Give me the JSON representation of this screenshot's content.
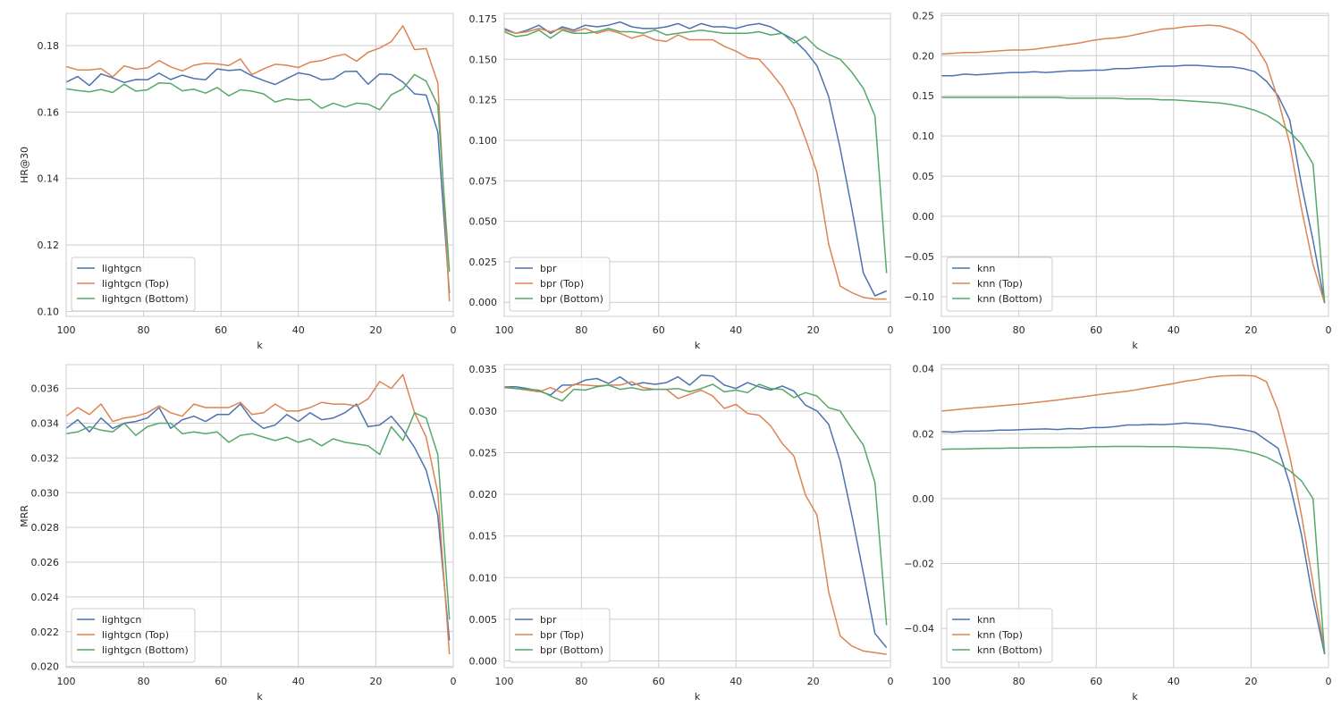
{
  "figure": {
    "colors": {
      "base": "#4c72b0",
      "top": "#dd8452",
      "bottom": "#55a868",
      "grid": "#cccccc",
      "frame": "#cccccc"
    }
  },
  "chart_data": [
    {
      "type": "line",
      "xlabel": "k",
      "ylabel": "HR@30",
      "xlim": [
        100,
        0
      ],
      "ylim": [
        0.0985,
        0.1897
      ],
      "xticks": [
        100,
        80,
        60,
        40,
        20,
        0
      ],
      "yticks": [
        0.1,
        0.12,
        0.14,
        0.16,
        0.18
      ],
      "ytick_labels": [
        "0.10",
        "0.12",
        "0.14",
        "0.16",
        "0.18"
      ],
      "legend": "lower-left",
      "x": [
        100,
        97,
        94,
        91,
        88,
        85,
        82,
        79,
        76,
        73,
        70,
        67,
        64,
        61,
        58,
        55,
        52,
        49,
        46,
        43,
        40,
        37,
        34,
        31,
        28,
        25,
        22,
        19,
        16,
        13,
        10,
        7,
        4,
        1
      ],
      "series": [
        {
          "name": "lightgcn",
          "values": [
            0.169,
            0.1707,
            0.168,
            0.1715,
            0.1703,
            0.1689,
            0.1698,
            0.1697,
            0.1717,
            0.1698,
            0.1711,
            0.1701,
            0.1697,
            0.173,
            0.1725,
            0.1728,
            0.1709,
            0.1695,
            0.1683,
            0.1701,
            0.1718,
            0.1712,
            0.1697,
            0.17,
            0.1722,
            0.1723,
            0.1684,
            0.1715,
            0.1713,
            0.169,
            0.1655,
            0.1651,
            0.154,
            0.1055
          ]
        },
        {
          "name": "lightgcn (Top)",
          "values": [
            0.1737,
            0.1727,
            0.1727,
            0.1731,
            0.1706,
            0.1739,
            0.1729,
            0.1733,
            0.1755,
            0.1736,
            0.1724,
            0.1741,
            0.1747,
            0.1745,
            0.174,
            0.176,
            0.1713,
            0.173,
            0.1744,
            0.1741,
            0.1734,
            0.175,
            0.1755,
            0.1767,
            0.1774,
            0.1753,
            0.178,
            0.1793,
            0.1812,
            0.186,
            0.1788,
            0.1791,
            0.1688,
            0.103
          ]
        },
        {
          "name": "lightgcn (Bottom)",
          "values": [
            0.167,
            0.1665,
            0.1661,
            0.1668,
            0.1659,
            0.1684,
            0.1663,
            0.1667,
            0.1688,
            0.1686,
            0.1664,
            0.1669,
            0.1657,
            0.1674,
            0.1649,
            0.1667,
            0.1663,
            0.1655,
            0.163,
            0.164,
            0.1636,
            0.1638,
            0.1611,
            0.1627,
            0.1615,
            0.1627,
            0.1624,
            0.1607,
            0.1652,
            0.167,
            0.1713,
            0.1693,
            0.162,
            0.112
          ]
        }
      ]
    },
    {
      "type": "line",
      "xlabel": "k",
      "ylabel": "",
      "xlim": [
        100,
        0
      ],
      "ylim": [
        -0.0087,
        0.1783
      ],
      "xticks": [
        100,
        80,
        60,
        40,
        20,
        0
      ],
      "yticks": [
        0.0,
        0.025,
        0.05,
        0.075,
        0.1,
        0.125,
        0.15,
        0.175
      ],
      "ytick_labels": [
        "0.000",
        "0.025",
        "0.050",
        "0.075",
        "0.100",
        "0.125",
        "0.150",
        "0.175"
      ],
      "legend": "lower-left",
      "x": [
        100,
        97,
        94,
        91,
        88,
        85,
        82,
        79,
        76,
        73,
        70,
        67,
        64,
        61,
        58,
        55,
        52,
        49,
        46,
        43,
        40,
        37,
        34,
        31,
        28,
        25,
        22,
        19,
        16,
        13,
        10,
        7,
        4,
        1
      ],
      "series": [
        {
          "name": "bpr",
          "values": [
            0.169,
            0.166,
            0.168,
            0.171,
            0.166,
            0.17,
            0.168,
            0.171,
            0.17,
            0.171,
            0.173,
            0.17,
            0.169,
            0.169,
            0.17,
            0.172,
            0.169,
            0.172,
            0.17,
            0.17,
            0.169,
            0.171,
            0.172,
            0.17,
            0.166,
            0.162,
            0.155,
            0.146,
            0.127,
            0.095,
            0.058,
            0.018,
            0.004,
            0.007
          ]
        },
        {
          "name": "bpr (Top)",
          "values": [
            0.168,
            0.166,
            0.167,
            0.169,
            0.167,
            0.169,
            0.167,
            0.169,
            0.166,
            0.168,
            0.166,
            0.163,
            0.165,
            0.162,
            0.161,
            0.165,
            0.162,
            0.162,
            0.162,
            0.158,
            0.155,
            0.151,
            0.15,
            0.142,
            0.133,
            0.12,
            0.101,
            0.08,
            0.036,
            0.01,
            0.006,
            0.003,
            0.002,
            0.002
          ]
        },
        {
          "name": "bpr (Bottom)",
          "values": [
            0.167,
            0.164,
            0.165,
            0.168,
            0.163,
            0.168,
            0.166,
            0.166,
            0.167,
            0.169,
            0.167,
            0.167,
            0.166,
            0.168,
            0.165,
            0.166,
            0.167,
            0.168,
            0.167,
            0.166,
            0.166,
            0.166,
            0.167,
            0.165,
            0.166,
            0.16,
            0.164,
            0.157,
            0.153,
            0.15,
            0.142,
            0.132,
            0.115,
            0.018
          ]
        }
      ]
    },
    {
      "type": "line",
      "xlabel": "k",
      "ylabel": "",
      "xlim": [
        100,
        0
      ],
      "ylim": [
        -0.1246,
        0.2526
      ],
      "xticks": [
        100,
        80,
        60,
        40,
        20,
        0
      ],
      "yticks": [
        -0.1,
        -0.05,
        0.0,
        0.05,
        0.1,
        0.15,
        0.2,
        0.25
      ],
      "ytick_labels": [
        "−0.10",
        "−0.05",
        "0.00",
        "0.05",
        "0.10",
        "0.15",
        "0.20",
        "0.25"
      ],
      "legend": "lower-left",
      "x": [
        100,
        97,
        94,
        91,
        88,
        85,
        82,
        79,
        76,
        73,
        70,
        67,
        64,
        61,
        58,
        55,
        52,
        49,
        46,
        43,
        40,
        37,
        34,
        31,
        28,
        25,
        22,
        19,
        16,
        13,
        10,
        7,
        4,
        1
      ],
      "series": [
        {
          "name": "knn",
          "values": [
            0.175,
            0.175,
            0.177,
            0.176,
            0.177,
            0.178,
            0.179,
            0.179,
            0.18,
            0.179,
            0.18,
            0.181,
            0.181,
            0.182,
            0.182,
            0.184,
            0.184,
            0.185,
            0.186,
            0.187,
            0.187,
            0.188,
            0.188,
            0.187,
            0.186,
            0.186,
            0.184,
            0.18,
            0.168,
            0.15,
            0.12,
            0.04,
            -0.03,
            -0.108
          ]
        },
        {
          "name": "knn (Top)",
          "values": [
            0.202,
            0.203,
            0.204,
            0.204,
            0.205,
            0.206,
            0.207,
            0.207,
            0.208,
            0.21,
            0.212,
            0.214,
            0.216,
            0.219,
            0.221,
            0.222,
            0.224,
            0.227,
            0.23,
            0.233,
            0.234,
            0.236,
            0.237,
            0.238,
            0.237,
            0.233,
            0.227,
            0.214,
            0.19,
            0.145,
            0.09,
            0.01,
            -0.06,
            -0.108
          ]
        },
        {
          "name": "knn (Bottom)",
          "values": [
            0.148,
            0.148,
            0.148,
            0.148,
            0.148,
            0.148,
            0.148,
            0.148,
            0.148,
            0.148,
            0.148,
            0.147,
            0.147,
            0.147,
            0.147,
            0.147,
            0.146,
            0.146,
            0.146,
            0.145,
            0.145,
            0.144,
            0.143,
            0.142,
            0.141,
            0.139,
            0.136,
            0.132,
            0.126,
            0.117,
            0.105,
            0.09,
            0.065,
            -0.108
          ]
        }
      ]
    },
    {
      "type": "line",
      "xlabel": "k",
      "ylabel": "MRR",
      "xlim": [
        100,
        0
      ],
      "ylim": [
        0.01993,
        0.03737
      ],
      "xticks": [
        100,
        80,
        60,
        40,
        20,
        0
      ],
      "yticks": [
        0.02,
        0.022,
        0.024,
        0.026,
        0.028,
        0.03,
        0.032,
        0.034,
        0.036
      ],
      "ytick_labels": [
        "0.020",
        "0.022",
        "0.024",
        "0.026",
        "0.028",
        "0.030",
        "0.032",
        "0.034",
        "0.036"
      ],
      "legend": "lower-left",
      "x": [
        100,
        97,
        94,
        91,
        88,
        85,
        82,
        79,
        76,
        73,
        70,
        67,
        64,
        61,
        58,
        55,
        52,
        49,
        46,
        43,
        40,
        37,
        34,
        31,
        28,
        25,
        22,
        19,
        16,
        13,
        10,
        7,
        4,
        1
      ],
      "series": [
        {
          "name": "lightgcn",
          "values": [
            0.0337,
            0.0342,
            0.0335,
            0.0343,
            0.0337,
            0.034,
            0.0341,
            0.0343,
            0.0349,
            0.0337,
            0.0342,
            0.0344,
            0.0341,
            0.0345,
            0.0345,
            0.0351,
            0.0342,
            0.0337,
            0.0339,
            0.0345,
            0.0341,
            0.0346,
            0.0342,
            0.0343,
            0.0346,
            0.0351,
            0.0338,
            0.0339,
            0.0344,
            0.0336,
            0.0326,
            0.0313,
            0.0287,
            0.0215
          ]
        },
        {
          "name": "lightgcn (Top)",
          "values": [
            0.0344,
            0.0349,
            0.0345,
            0.0351,
            0.0341,
            0.0343,
            0.0344,
            0.0346,
            0.035,
            0.0346,
            0.0344,
            0.0351,
            0.0349,
            0.0349,
            0.0349,
            0.0352,
            0.0345,
            0.0346,
            0.0351,
            0.0347,
            0.0347,
            0.0349,
            0.0352,
            0.0351,
            0.0351,
            0.035,
            0.0354,
            0.0364,
            0.036,
            0.0368,
            0.0346,
            0.0332,
            0.03,
            0.0207
          ]
        },
        {
          "name": "lightgcn (Bottom)",
          "values": [
            0.0334,
            0.0335,
            0.0338,
            0.0336,
            0.0335,
            0.034,
            0.0333,
            0.0338,
            0.034,
            0.034,
            0.0334,
            0.0335,
            0.0334,
            0.0335,
            0.0329,
            0.0333,
            0.0334,
            0.0332,
            0.033,
            0.0332,
            0.0329,
            0.0331,
            0.0327,
            0.0331,
            0.0329,
            0.0328,
            0.0327,
            0.0322,
            0.0338,
            0.033,
            0.0346,
            0.0343,
            0.0322,
            0.0227
          ]
        }
      ]
    },
    {
      "type": "line",
      "xlabel": "k",
      "ylabel": "",
      "xlim": [
        100,
        0
      ],
      "ylim": [
        -0.0008,
        0.03556
      ],
      "xticks": [
        100,
        80,
        60,
        40,
        20,
        0
      ],
      "yticks": [
        0.0,
        0.005,
        0.01,
        0.015,
        0.02,
        0.025,
        0.03,
        0.035
      ],
      "ytick_labels": [
        "0.000",
        "0.005",
        "0.010",
        "0.015",
        "0.020",
        "0.025",
        "0.030",
        "0.035"
      ],
      "legend": "lower-left",
      "x": [
        100,
        97,
        94,
        91,
        88,
        85,
        82,
        79,
        76,
        73,
        70,
        67,
        64,
        61,
        58,
        55,
        52,
        49,
        46,
        43,
        40,
        37,
        34,
        31,
        28,
        25,
        22,
        19,
        16,
        13,
        10,
        7,
        4,
        1
      ],
      "series": [
        {
          "name": "bpr",
          "values": [
            0.0329,
            0.0329,
            0.0327,
            0.0324,
            0.0319,
            0.0331,
            0.0331,
            0.0337,
            0.0339,
            0.0333,
            0.0341,
            0.0331,
            0.0334,
            0.0332,
            0.0334,
            0.0341,
            0.0331,
            0.0343,
            0.0342,
            0.0331,
            0.0327,
            0.0334,
            0.0329,
            0.0325,
            0.033,
            0.0324,
            0.0307,
            0.03,
            0.0284,
            0.024,
            0.0175,
            0.0105,
            0.0033,
            0.0016
          ]
        },
        {
          "name": "bpr (Top)",
          "values": [
            0.0329,
            0.0327,
            0.0325,
            0.0323,
            0.0328,
            0.0322,
            0.0332,
            0.0331,
            0.033,
            0.0331,
            0.0331,
            0.0335,
            0.0328,
            0.0326,
            0.0326,
            0.0315,
            0.032,
            0.0325,
            0.0318,
            0.0303,
            0.0308,
            0.0297,
            0.0295,
            0.0282,
            0.0261,
            0.0246,
            0.0199,
            0.0175,
            0.0083,
            0.003,
            0.0018,
            0.0012,
            0.001,
            0.0008
          ]
        },
        {
          "name": "bpr (Bottom)",
          "values": [
            0.0328,
            0.0327,
            0.0326,
            0.0325,
            0.0318,
            0.0312,
            0.0326,
            0.0325,
            0.0329,
            0.0331,
            0.0326,
            0.0328,
            0.0325,
            0.0326,
            0.0326,
            0.0327,
            0.0323,
            0.0327,
            0.0332,
            0.0323,
            0.0325,
            0.0322,
            0.0332,
            0.0327,
            0.0326,
            0.0316,
            0.0322,
            0.0318,
            0.0304,
            0.03,
            0.0279,
            0.0259,
            0.0214,
            0.0043
          ]
        }
      ]
    },
    {
      "type": "line",
      "xlabel": "k",
      "ylabel": "",
      "xlim": [
        100,
        0
      ],
      "ylim": [
        -0.0521,
        0.0413
      ],
      "xticks": [
        100,
        80,
        60,
        40,
        20,
        0
      ],
      "yticks": [
        -0.04,
        -0.02,
        0.0,
        0.02,
        0.04
      ],
      "ytick_labels": [
        "−0.04",
        "−0.02",
        "0.00",
        "0.02",
        "0.04"
      ],
      "legend": "lower-left",
      "x": [
        100,
        97,
        94,
        91,
        88,
        85,
        82,
        79,
        76,
        73,
        70,
        67,
        64,
        61,
        58,
        55,
        52,
        49,
        46,
        43,
        40,
        37,
        34,
        31,
        28,
        25,
        22,
        19,
        16,
        13,
        10,
        7,
        4,
        1
      ],
      "series": [
        {
          "name": "knn",
          "values": [
            0.0207,
            0.0205,
            0.0208,
            0.0208,
            0.0209,
            0.0211,
            0.0211,
            0.0213,
            0.0214,
            0.0215,
            0.0213,
            0.0216,
            0.0215,
            0.0219,
            0.0219,
            0.0222,
            0.0227,
            0.0227,
            0.0229,
            0.0228,
            0.023,
            0.0233,
            0.0231,
            0.0229,
            0.0223,
            0.0219,
            0.0213,
            0.0205,
            0.018,
            0.0155,
            0.0045,
            -0.011,
            -0.031,
            -0.048
          ]
        },
        {
          "name": "knn (Top)",
          "values": [
            0.027,
            0.0273,
            0.0277,
            0.028,
            0.0283,
            0.0286,
            0.0289,
            0.0292,
            0.0296,
            0.03,
            0.0304,
            0.0309,
            0.0313,
            0.0318,
            0.0323,
            0.0327,
            0.0331,
            0.0337,
            0.0343,
            0.0349,
            0.0355,
            0.0362,
            0.0367,
            0.0374,
            0.0378,
            0.0379,
            0.038,
            0.0378,
            0.036,
            0.027,
            0.013,
            -0.005,
            -0.026,
            -0.047
          ]
        },
        {
          "name": "knn (Bottom)",
          "values": [
            0.0152,
            0.0153,
            0.0153,
            0.0154,
            0.0155,
            0.0155,
            0.0156,
            0.0156,
            0.0157,
            0.0157,
            0.0158,
            0.0158,
            0.0159,
            0.016,
            0.016,
            0.0161,
            0.0161,
            0.0161,
            0.016,
            0.016,
            0.016,
            0.0159,
            0.0158,
            0.0157,
            0.0155,
            0.0153,
            0.0148,
            0.014,
            0.0128,
            0.0109,
            0.0086,
            0.0055,
            0.0,
            -0.048
          ]
        }
      ]
    }
  ]
}
